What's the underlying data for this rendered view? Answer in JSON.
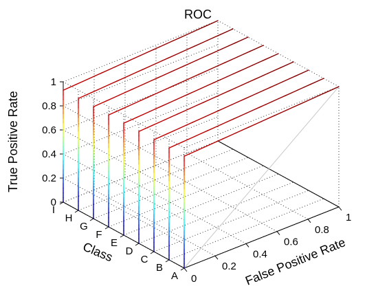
{
  "chart_data": {
    "type": "line",
    "view": "3d",
    "title": "ROC",
    "xlabel": "False Positive Rate",
    "ylabel": "True Positive Rate",
    "zlabel": "Class",
    "x_ticks": [
      "0",
      "0.2",
      "0.4",
      "0.6",
      "0.8",
      "1"
    ],
    "y_ticks": [
      "0",
      "0.2",
      "0.4",
      "0.6",
      "0.8",
      "1"
    ],
    "classes": [
      "A",
      "B",
      "C",
      "D",
      "E",
      "F",
      "G",
      "H",
      "I"
    ],
    "xlim": [
      0,
      1
    ],
    "ylim": [
      0,
      1
    ],
    "grid": "on",
    "colormap": "jet",
    "series": [
      {
        "name": "A",
        "fpr": [
          0,
          0,
          1
        ],
        "tpr": [
          0,
          0.93,
          1
        ]
      },
      {
        "name": "B",
        "fpr": [
          0,
          0,
          1
        ],
        "tpr": [
          0,
          0.93,
          1
        ]
      },
      {
        "name": "C",
        "fpr": [
          0,
          0,
          1
        ],
        "tpr": [
          0,
          0.93,
          1
        ]
      },
      {
        "name": "D",
        "fpr": [
          0,
          0,
          1
        ],
        "tpr": [
          0,
          0.93,
          1
        ]
      },
      {
        "name": "E",
        "fpr": [
          0,
          0,
          1
        ],
        "tpr": [
          0,
          0.93,
          1
        ]
      },
      {
        "name": "F",
        "fpr": [
          0,
          0,
          1
        ],
        "tpr": [
          0,
          0.93,
          1
        ]
      },
      {
        "name": "G",
        "fpr": [
          0,
          0,
          1
        ],
        "tpr": [
          0,
          0.93,
          1
        ]
      },
      {
        "name": "H",
        "fpr": [
          0,
          0,
          1
        ],
        "tpr": [
          0,
          0.93,
          1
        ]
      },
      {
        "name": "I",
        "fpr": [
          0,
          0,
          1
        ],
        "tpr": [
          0,
          0.93,
          1
        ]
      }
    ],
    "reference_line": {
      "fpr": [
        0,
        1
      ],
      "tpr": [
        0,
        1
      ]
    }
  }
}
